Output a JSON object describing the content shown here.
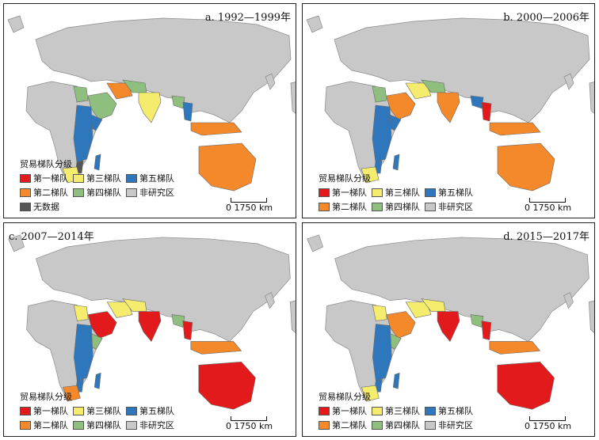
{
  "colors": {
    "tier1": "#e31a1c",
    "tier2": "#f4892c",
    "tier3": "#f5ec6e",
    "tier4": "#8fbf7f",
    "tier5": "#2f77bd",
    "non_study": "#c8c8c8",
    "no_data": "#555555"
  },
  "panels": [
    {
      "title": "a. 1992—1999年",
      "legend": {
        "title": "贸易梯队分级",
        "items": [
          {
            "label": "第一梯队",
            "key": "tier1"
          },
          {
            "label": "第三梯队",
            "key": "tier3"
          },
          {
            "label": "第五梯队",
            "key": "tier5"
          },
          {
            "label": "第二梯队",
            "key": "tier2"
          },
          {
            "label": "第四梯队",
            "key": "tier4"
          },
          {
            "label": "非研究区",
            "key": "non_study"
          },
          {
            "label": "无数据",
            "key": "no_data"
          }
        ]
      },
      "scale": "0  1750 km",
      "regions": {
        "india": "tier3",
        "arabia": "tier4",
        "iran": "tier2",
        "central": "tier4",
        "east_africa": "tier5",
        "horn": "tier5",
        "south_africa": "tier3",
        "madagascar": "tier5",
        "mozambique": "no_data",
        "egypt": "tier4",
        "se_asia": "tier5",
        "indonesia": "tier2",
        "australia": "tier2",
        "china_s": "tier4"
      }
    },
    {
      "title": "b. 2000—2006年",
      "legend": {
        "title": "贸易梯队分级",
        "items": [
          {
            "label": "第一梯队",
            "key": "tier1"
          },
          {
            "label": "第三梯队",
            "key": "tier3"
          },
          {
            "label": "第五梯队",
            "key": "tier5"
          },
          {
            "label": "第二梯队",
            "key": "tier2"
          },
          {
            "label": "第四梯队",
            "key": "tier4"
          },
          {
            "label": "非研究区",
            "key": "non_study"
          }
        ]
      },
      "scale": "0  1750 km",
      "regions": {
        "india": "tier2",
        "arabia": "tier2",
        "iran": "tier3",
        "central": "tier4",
        "east_africa": "tier5",
        "horn": "tier5",
        "south_africa": "tier3",
        "madagascar": "tier5",
        "mozambique": "tier5",
        "egypt": "tier4",
        "se_asia": "tier1",
        "indonesia": "tier2",
        "australia": "tier2",
        "china_s": "tier5"
      }
    },
    {
      "title": "c. 2007—2014年",
      "legend": {
        "title": "贸易梯队分级",
        "items": [
          {
            "label": "第一梯队",
            "key": "tier1"
          },
          {
            "label": "第三梯队",
            "key": "tier3"
          },
          {
            "label": "第五梯队",
            "key": "tier5"
          },
          {
            "label": "第二梯队",
            "key": "tier2"
          },
          {
            "label": "第四梯队",
            "key": "tier4"
          },
          {
            "label": "非研究区",
            "key": "non_study"
          }
        ]
      },
      "scale": "0  1750 km",
      "regions": {
        "india": "tier1",
        "arabia": "tier1",
        "iran": "tier3",
        "central": "tier3",
        "east_africa": "tier5",
        "horn": "tier4",
        "south_africa": "tier2",
        "madagascar": "tier5",
        "mozambique": "tier5",
        "egypt": "tier3",
        "se_asia": "tier1",
        "indonesia": "tier2",
        "australia": "tier1",
        "china_s": "tier4"
      }
    },
    {
      "title": "d. 2015—2017年",
      "legend": {
        "title": "贸易梯队分级",
        "items": [
          {
            "label": "第一梯队",
            "key": "tier1"
          },
          {
            "label": "第三梯队",
            "key": "tier3"
          },
          {
            "label": "第五梯队",
            "key": "tier5"
          },
          {
            "label": "第二梯队",
            "key": "tier2"
          },
          {
            "label": "第四梯队",
            "key": "tier4"
          },
          {
            "label": "非研究区",
            "key": "non_study"
          }
        ]
      },
      "scale": "0  1750 km",
      "regions": {
        "india": "tier1",
        "arabia": "tier2",
        "iran": "tier3",
        "central": "tier3",
        "east_africa": "tier5",
        "horn": "tier4",
        "south_africa": "tier3",
        "madagascar": "tier5",
        "mozambique": "tier5",
        "egypt": "tier3",
        "se_asia": "tier1",
        "indonesia": "tier2",
        "australia": "tier1",
        "china_s": "tier4"
      }
    }
  ]
}
